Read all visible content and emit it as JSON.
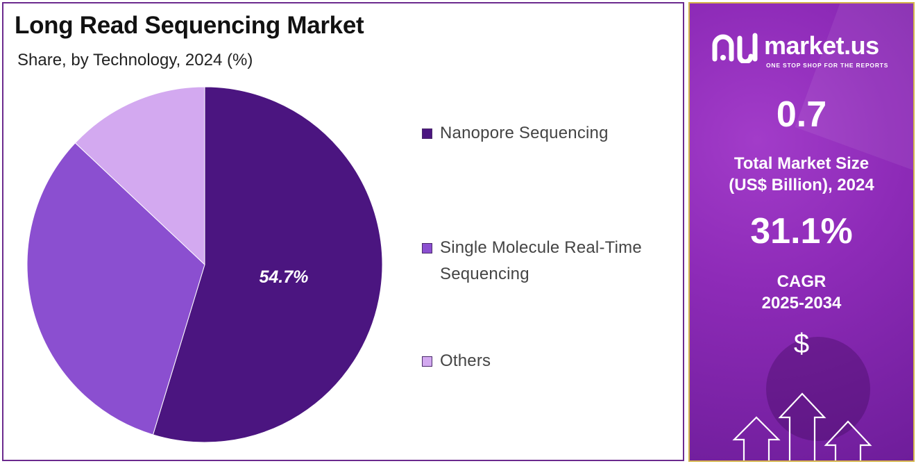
{
  "chart_data": {
    "type": "pie",
    "title": "Long Read Sequencing Market",
    "subtitle": "Share, by Technology, 2024 (%)",
    "categories": [
      "Nanopore Sequencing",
      "Single Molecule Real-Time Sequencing",
      "Others"
    ],
    "values": [
      54.7,
      32.3,
      13.0
    ],
    "data_labels": [
      "54.7%",
      "",
      ""
    ],
    "colors": [
      "#4b1580",
      "#8b4fd0",
      "#d3a9f0"
    ],
    "legend_placement": "right",
    "legend_lines": [
      [
        "Nanopore Sequencing"
      ],
      [
        "Single Molecule Real-Time",
        "Sequencing"
      ],
      [
        "Others"
      ]
    ]
  },
  "side_panel": {
    "logo_text": "market.us",
    "logo_tagline": "ONE STOP SHOP FOR THE REPORTS",
    "market_size_value": "0.7",
    "market_size_label_1": "Total Market Size",
    "market_size_label_2": "(US$ Billion), 2024",
    "cagr_value": "31.1%",
    "cagr_label_1": "CAGR",
    "cagr_label_2": "2025-2034",
    "currency_symbol": "$",
    "colors": {
      "background": "#8e2bb8",
      "border": "#d4b44a",
      "text": "#ffffff"
    },
    "icons": [
      "logo-icon",
      "dollar-icon",
      "growth-arrows-icon"
    ]
  }
}
